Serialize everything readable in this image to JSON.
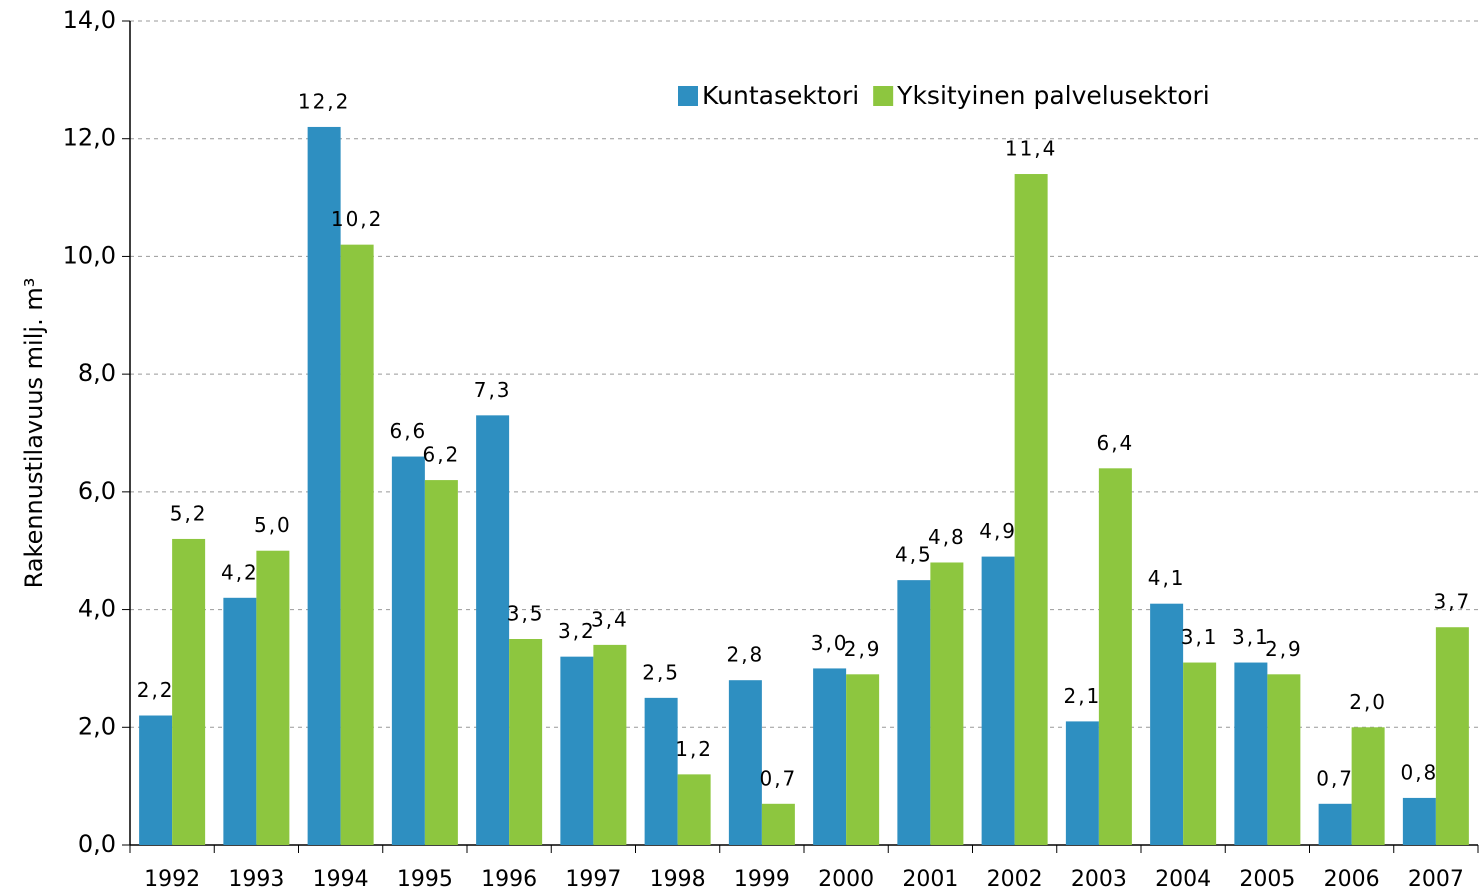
{
  "chart_data": {
    "type": "bar",
    "ylabel": "Rakennustilavuus milj. m³",
    "categories": [
      "1992",
      "1993",
      "1994",
      "1995",
      "1996",
      "1997",
      "1998",
      "1999",
      "2000",
      "2001",
      "2002",
      "2003",
      "2004",
      "2005",
      "2006",
      "2007"
    ],
    "series": [
      {
        "name": "Kuntasektori",
        "color": "#2e8fc1",
        "values": [
          2.2,
          4.2,
          12.2,
          6.6,
          7.3,
          3.2,
          2.5,
          2.8,
          3.0,
          4.5,
          4.9,
          2.1,
          4.1,
          3.1,
          0.7,
          0.8
        ],
        "value_labels": [
          "2,2",
          "4,2",
          "12,2",
          "6,6",
          "7,3",
          "3,2",
          "2,5",
          "2,8",
          "3,0",
          "4,5",
          "4,9",
          "2,1",
          "4,1",
          "3,1",
          "0,7",
          "0,8"
        ]
      },
      {
        "name": "Yksityinen palvelusektori",
        "color": "#8dc63f",
        "values": [
          5.2,
          5.0,
          10.2,
          6.2,
          3.5,
          3.4,
          1.2,
          0.7,
          2.9,
          4.8,
          11.4,
          6.4,
          3.1,
          2.9,
          2.0,
          3.7
        ],
        "value_labels": [
          "5,2",
          "5,0",
          "10,2",
          "6,2",
          "3,5",
          "3,4",
          "1,2",
          "0,7",
          "2,9",
          "4,8",
          "11,4",
          "6,4",
          "3,1",
          "2,9",
          "2,0",
          "3,7"
        ]
      }
    ],
    "ylim": [
      0,
      14
    ],
    "yticks": [
      {
        "value": 0,
        "label": "0,0"
      },
      {
        "value": 2,
        "label": "2,0"
      },
      {
        "value": 4,
        "label": "4,0"
      },
      {
        "value": 6,
        "label": "6,0"
      },
      {
        "value": 8,
        "label": "8,0"
      },
      {
        "value": 10,
        "label": "10,0"
      },
      {
        "value": 12,
        "label": "12,0"
      },
      {
        "value": 14,
        "label": "14,0"
      }
    ],
    "grid": true,
    "legend": "top"
  }
}
